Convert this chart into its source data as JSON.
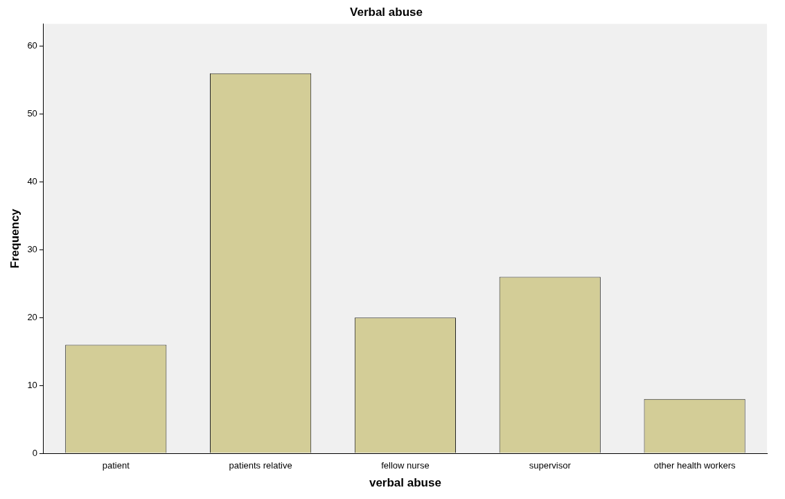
{
  "chart_data": {
    "type": "bar",
    "title": "Verbal abuse",
    "xlabel": "verbal abuse",
    "ylabel": "Frequency",
    "categories": [
      "patient",
      "patients relative",
      "fellow nurse",
      "supervisor",
      "other health workers"
    ],
    "values": [
      16,
      56,
      20,
      26,
      8
    ],
    "color": "#d3cd97",
    "ylim": [
      0,
      63.3
    ],
    "yticks": [
      0,
      10,
      20,
      30,
      40,
      50,
      60
    ]
  }
}
